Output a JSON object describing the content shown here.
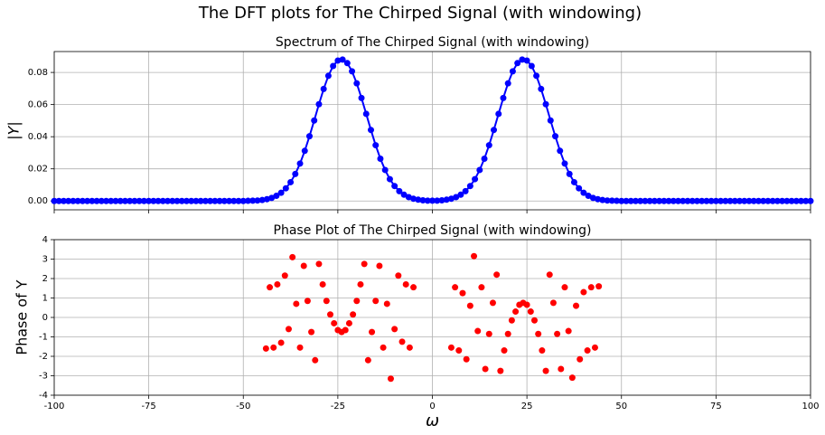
{
  "title": "The DFT plots for The Chirped Signal (with windowing)",
  "chart_data": [
    {
      "type": "line",
      "title": "Spectrum of The Chirped Signal (with windowing)",
      "ylabel": "|Y|",
      "color": "#0000ff",
      "grid": true,
      "xlim": [
        -100,
        100
      ],
      "xticks": [
        -100,
        -75,
        -50,
        -25,
        0,
        25,
        50,
        75,
        100
      ],
      "ylim": [
        -0.0055,
        0.093
      ],
      "yticks": [
        {
          "value": 0,
          "label": "0.00"
        },
        {
          "value": 0.02,
          "label": "0.02"
        },
        {
          "value": 0.04,
          "label": "0.04"
        },
        {
          "value": 0.06,
          "label": "0.06"
        },
        {
          "value": 0.08,
          "label": "0.08"
        }
      ],
      "x": [
        -100,
        -98.75,
        -97.5,
        -96.25,
        -95,
        -93.75,
        -92.5,
        -91.25,
        -90,
        -88.75,
        -87.5,
        -86.25,
        -85,
        -83.75,
        -82.5,
        -81.25,
        -80,
        -78.75,
        -77.5,
        -76.25,
        -75,
        -73.75,
        -72.5,
        -71.25,
        -70,
        -68.75,
        -67.5,
        -66.25,
        -65,
        -63.75,
        -62.5,
        -61.25,
        -60,
        -58.75,
        -57.5,
        -56.25,
        -55,
        -53.75,
        -52.5,
        -51.25,
        -50,
        -48.75,
        -47.5,
        -46.25,
        -45,
        -43.75,
        -42.5,
        -41.25,
        -40,
        -38.75,
        -37.5,
        -36.25,
        -35,
        -33.75,
        -32.5,
        -31.25,
        -30,
        -28.75,
        -27.5,
        -26.25,
        -25,
        -23.75,
        -22.5,
        -21.25,
        -20,
        -18.75,
        -17.5,
        -16.25,
        -15,
        -13.75,
        -12.5,
        -11.25,
        -10,
        -8.75,
        -7.5,
        -6.25,
        -5,
        -3.75,
        -2.5,
        -1.25,
        0,
        1.25,
        2.5,
        3.75,
        5,
        6.25,
        7.5,
        8.75,
        10,
        11.25,
        12.5,
        13.75,
        15,
        16.25,
        17.5,
        18.75,
        20,
        21.25,
        22.5,
        23.75,
        25,
        26.25,
        27.5,
        28.75,
        30,
        31.25,
        32.5,
        33.75,
        35,
        36.25,
        37.5,
        38.75,
        40,
        41.25,
        42.5,
        43.75,
        45,
        46.25,
        47.5,
        48.75,
        50,
        51.25,
        52.5,
        53.75,
        55,
        56.25,
        57.5,
        58.75,
        60,
        61.25,
        62.5,
        63.75,
        65,
        66.25,
        67.5,
        68.75,
        70,
        71.25,
        72.5,
        73.75,
        75,
        76.25,
        77.5,
        78.75,
        80,
        81.25,
        82.5,
        83.75,
        85,
        86.25,
        87.5,
        88.75,
        90,
        91.25,
        92.5,
        93.75,
        95,
        96.25,
        97.5,
        98.75,
        100
      ],
      "values": [
        0,
        0,
        0,
        0,
        0,
        0,
        0,
        0,
        0,
        0,
        0,
        0,
        0,
        0,
        0,
        0,
        0,
        0,
        0,
        0,
        0,
        0,
        0,
        0,
        0,
        0,
        0,
        0,
        0,
        0,
        0,
        0,
        0,
        0,
        0,
        0,
        0,
        0,
        0,
        0,
        0,
        0.0001,
        0.0002,
        0.0003,
        0.0006,
        0.0011,
        0.0019,
        0.0032,
        0.0051,
        0.0079,
        0.0117,
        0.0168,
        0.0233,
        0.0312,
        0.0403,
        0.0501,
        0.0602,
        0.0697,
        0.0779,
        0.084,
        0.0874,
        0.088,
        0.0858,
        0.0807,
        0.0732,
        0.0641,
        0.0542,
        0.0442,
        0.0347,
        0.0263,
        0.0193,
        0.0136,
        0.0093,
        0.0061,
        0.0039,
        0.0024,
        0.0014,
        0.0008,
        0.0004,
        0.0002,
        0.0002,
        0.0002,
        0.0004,
        0.0008,
        0.0014,
        0.0024,
        0.0039,
        0.0061,
        0.0093,
        0.0136,
        0.0193,
        0.0263,
        0.0347,
        0.0442,
        0.0542,
        0.0641,
        0.0732,
        0.0807,
        0.0858,
        0.088,
        0.0874,
        0.084,
        0.0779,
        0.0697,
        0.0602,
        0.0501,
        0.0403,
        0.0312,
        0.0233,
        0.0168,
        0.0117,
        0.0079,
        0.0051,
        0.0032,
        0.0019,
        0.0011,
        0.0006,
        0.0003,
        0.0002,
        0.0001,
        0,
        0,
        0,
        0,
        0,
        0,
        0,
        0,
        0,
        0,
        0,
        0,
        0,
        0,
        0,
        0,
        0,
        0,
        0,
        0,
        0,
        0,
        0,
        0,
        0,
        0,
        0,
        0,
        0,
        0,
        0,
        0,
        0,
        0,
        0,
        0,
        0,
        0,
        0,
        0,
        0
      ]
    },
    {
      "type": "scatter",
      "title": "Phase Plot of The Chirped Signal (with windowing)",
      "ylabel": "Phase of Y",
      "xlabel": "ω",
      "color": "#ff0000",
      "grid": true,
      "xlim": [
        -100,
        100
      ],
      "xticks": [
        -100,
        -75,
        -50,
        -25,
        0,
        25,
        50,
        75,
        100
      ],
      "ylim": [
        -4,
        4
      ],
      "yticks": [
        -4,
        -3,
        -2,
        -1,
        0,
        1,
        2,
        3,
        4
      ],
      "x": [
        -44,
        -43,
        -42,
        -41,
        -40,
        -39,
        -38,
        -37,
        -36,
        -35,
        -34,
        -33,
        -32,
        -31,
        -30,
        -29,
        -28,
        -27,
        -26,
        -25,
        -24,
        -23,
        -22,
        -21,
        -20,
        -19,
        -18,
        -17,
        -16,
        -15,
        -14,
        -13,
        -12,
        -11,
        -10,
        -9,
        -8,
        -7,
        -6,
        -5,
        5,
        6,
        7,
        8,
        9,
        10,
        11,
        12,
        13,
        14,
        15,
        16,
        17,
        18,
        19,
        20,
        21,
        22,
        23,
        24,
        25,
        26,
        27,
        28,
        29,
        30,
        31,
        32,
        33,
        34,
        35,
        36,
        37,
        38,
        39,
        40,
        41,
        42,
        43,
        44
      ],
      "values": [
        -1.6,
        1.55,
        -1.55,
        1.7,
        -1.3,
        2.15,
        -0.6,
        3.1,
        0.7,
        -1.55,
        2.65,
        0.85,
        -0.75,
        -2.2,
        2.75,
        1.7,
        0.85,
        0.15,
        -0.3,
        -0.65,
        -0.75,
        -0.65,
        -0.3,
        0.15,
        0.85,
        1.7,
        2.75,
        -2.2,
        -0.75,
        0.85,
        2.65,
        -1.55,
        0.7,
        -3.15,
        -0.6,
        2.15,
        -1.25,
        1.7,
        -1.55,
        1.55,
        -1.55,
        1.55,
        -1.7,
        1.25,
        -2.15,
        0.6,
        3.15,
        -0.7,
        1.55,
        -2.65,
        -0.85,
        0.75,
        2.2,
        -2.75,
        -1.7,
        -0.85,
        -0.15,
        0.3,
        0.65,
        0.75,
        0.65,
        0.3,
        -0.15,
        -0.85,
        -1.7,
        -2.75,
        2.2,
        0.75,
        -0.85,
        -2.65,
        1.55,
        -0.7,
        -3.1,
        0.6,
        -2.15,
        1.3,
        -1.7,
        1.55,
        -1.55,
        1.6
      ]
    }
  ]
}
